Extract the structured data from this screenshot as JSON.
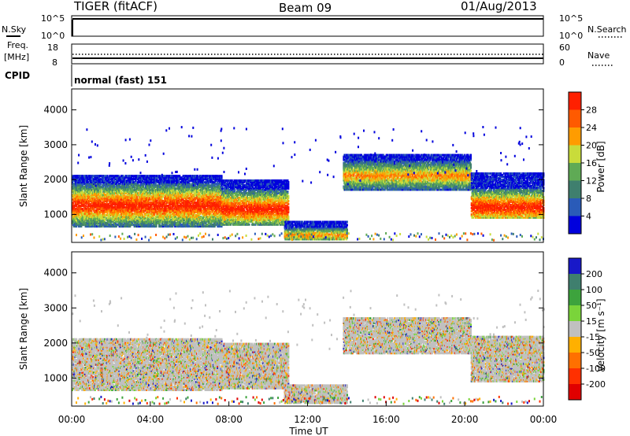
{
  "header": {
    "radar": "TIGER (fitACF)",
    "beam": "Beam 09",
    "date": "01/Aug/2013"
  },
  "top_panels": {
    "nsky": {
      "label": "N.Sky",
      "top_tick": "10^5",
      "bottom_tick": "10^0"
    },
    "nsearch": {
      "label": "N.Search",
      "top_tick": "10^5",
      "bottom_tick": "10^0"
    },
    "freq": {
      "label_line1": "Freq.",
      "label_line2": "[MHz]",
      "top_tick": "18",
      "bottom_tick": "8"
    },
    "nave": {
      "label": "Nave",
      "top_tick": "60",
      "bottom_tick": "0"
    },
    "cpid": {
      "label": "CPID",
      "value": "normal (fast) 151"
    }
  },
  "chart_data": [
    {
      "type": "heatmap",
      "name": "power",
      "ylabel": "Slant Range [km]",
      "yticks": [
        "1000",
        "2000",
        "3000",
        "4000"
      ],
      "ylim": [
        200,
        4600
      ],
      "xlim": [
        0,
        24
      ],
      "colorbar": {
        "label": "Power [dB]",
        "ticks": [
          "4",
          "8",
          "12",
          "16",
          "20",
          "24",
          "28"
        ],
        "colors": [
          "#0000dd",
          "#2a5bb8",
          "#3f7f6e",
          "#5faa55",
          "#c9dc3a",
          "#ff9c00",
          "#ff5a00",
          "#ff2000"
        ]
      },
      "regions": [
        {
          "t0": 0.0,
          "t1": 7.6,
          "r0": 650,
          "r1": 2100,
          "peak_r": 1250,
          "level": "high"
        },
        {
          "t0": 7.6,
          "t1": 11.0,
          "r0": 700,
          "r1": 2000,
          "peak_r": 1150,
          "level": "high"
        },
        {
          "t0": 10.8,
          "t1": 14.0,
          "r0": 280,
          "r1": 800,
          "peak_r": 400,
          "level": "medium"
        },
        {
          "t0": 13.8,
          "t1": 20.3,
          "r0": 1700,
          "r1": 2700,
          "peak_r": 2100,
          "level": "medium"
        },
        {
          "t0": 20.3,
          "t1": 24.0,
          "r0": 900,
          "r1": 2200,
          "peak_r": 1200,
          "level": "high"
        }
      ]
    },
    {
      "type": "heatmap",
      "name": "velocity",
      "ylabel": "Slant Range [km]",
      "yticks": [
        "1000",
        "2000",
        "3000",
        "4000"
      ],
      "ylim": [
        200,
        4600
      ],
      "xlim": [
        0,
        24
      ],
      "xlabel": "Time UT",
      "xticks": [
        "00:00",
        "04:00",
        "08:00",
        "12:00",
        "16:00",
        "20:00",
        "00:00"
      ],
      "colorbar": {
        "label": "Velocity [m s⁻¹]",
        "ticks": [
          "200",
          "100",
          "50",
          "15",
          "-15",
          "-50",
          "-100",
          "-200"
        ],
        "colors": [
          "#1818c8",
          "#3f7f6e",
          "#3da33d",
          "#7ad43a",
          "#c0c0c0",
          "#ffb000",
          "#ff7000",
          "#ff3000",
          "#e00000"
        ]
      }
    }
  ]
}
